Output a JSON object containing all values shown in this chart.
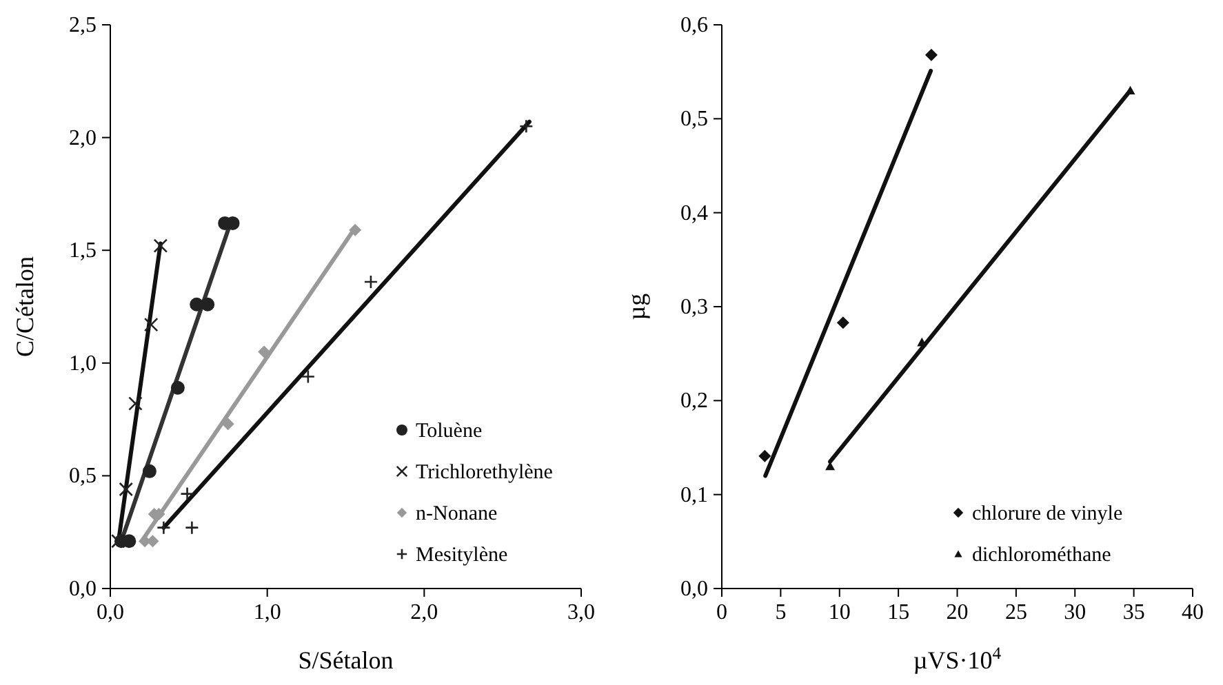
{
  "chart_data": [
    {
      "type": "scatter",
      "xlabel": "S/Sétalon",
      "ylabel": "C/Cétalon",
      "legend": "bottom right",
      "xlim": [
        0,
        3
      ],
      "xticks": [
        {
          "value": 0,
          "label": "0,0"
        },
        {
          "value": 1,
          "label": "1,0"
        },
        {
          "value": 2,
          "label": "2,0"
        },
        {
          "value": 3,
          "label": "3,0"
        }
      ],
      "ylim": [
        0,
        2.5
      ],
      "yticks": [
        {
          "value": 0,
          "label": "0,0"
        },
        {
          "value": 0.5,
          "label": "0,5"
        },
        {
          "value": 1,
          "label": "1,0"
        },
        {
          "value": 1.5,
          "label": "1,5"
        },
        {
          "value": 2,
          "label": "2,0"
        },
        {
          "value": 2.5,
          "label": "2,5"
        }
      ],
      "series": [
        {
          "type": "line",
          "color": "#333333",
          "x": [
            0.07,
            0.77
          ],
          "values": [
            0.21,
            1.63
          ]
        },
        {
          "type": "line",
          "color": "#111111",
          "x": [
            0.05,
            0.32
          ],
          "values": [
            0.2,
            1.53
          ]
        },
        {
          "type": "line",
          "color": "#999999",
          "x": [
            0.2,
            1.56
          ],
          "values": [
            0.21,
            1.6
          ]
        },
        {
          "type": "line",
          "color": "#111111",
          "x": [
            0.34,
            2.67
          ],
          "values": [
            0.27,
            2.07
          ]
        },
        {
          "name": "Toluène",
          "color": "#222222",
          "marker": "circle",
          "x": [
            0.07,
            0.12,
            0.25,
            0.43,
            0.55,
            0.62,
            0.73,
            0.78
          ],
          "values": [
            0.21,
            0.21,
            0.52,
            0.89,
            1.26,
            1.26,
            1.62,
            1.62
          ]
        },
        {
          "name": "Trichlorethylène",
          "color": "#222222",
          "marker": "cross",
          "x": [
            0.05,
            0.1,
            0.16,
            0.26,
            0.32
          ],
          "values": [
            0.21,
            0.44,
            0.82,
            1.17,
            1.52
          ]
        },
        {
          "name": "n-Nonane",
          "color": "#999999",
          "marker": "diamond",
          "x": [
            0.22,
            0.27,
            0.28,
            0.31,
            0.75,
            0.98,
            1.56
          ],
          "values": [
            0.21,
            0.21,
            0.33,
            0.33,
            0.73,
            1.05,
            1.59
          ]
        },
        {
          "name": "Mesitylène",
          "color": "#222222",
          "marker": "plus",
          "x": [
            0.34,
            0.49,
            0.52,
            1.26,
            1.66,
            2.65
          ],
          "values": [
            0.27,
            0.42,
            0.27,
            0.94,
            1.36,
            2.05
          ]
        }
      ]
    },
    {
      "type": "scatter",
      "xlabel": "µVS·10$^{4}$",
      "ylabel": "µg",
      "legend": "bottom right",
      "xlim": [
        0,
        40
      ],
      "xticks": [
        0,
        5,
        10,
        15,
        20,
        25,
        30,
        35,
        40
      ],
      "ylim": [
        0,
        0.6
      ],
      "yticks": [
        {
          "value": 0,
          "label": "0,0"
        },
        {
          "value": 0.1,
          "label": "0,1"
        },
        {
          "value": 0.2,
          "label": "0,2"
        },
        {
          "value": 0.3,
          "label": "0,3"
        },
        {
          "value": 0.4,
          "label": "0,4"
        },
        {
          "value": 0.5,
          "label": "0,5"
        },
        {
          "value": 0.6,
          "label": "0,6"
        }
      ],
      "series": [
        {
          "type": "line",
          "color": "#111111",
          "x": [
            3.7,
            17.75
          ],
          "values": [
            0.12,
            0.551
          ]
        },
        {
          "type": "line",
          "color": "#111111",
          "x": [
            9.2,
            34.7
          ],
          "values": [
            0.135,
            0.53
          ]
        },
        {
          "name": "chlorure de vinyle",
          "color": "#111111",
          "marker": "diamond",
          "x": [
            3.65,
            10.3,
            17.8
          ],
          "values": [
            0.141,
            0.283,
            0.568
          ]
        },
        {
          "name": "dichlorométhane",
          "color": "#111111",
          "marker": "triangle",
          "x": [
            9.2,
            17.0,
            34.7
          ],
          "values": [
            0.13,
            0.262,
            0.53
          ]
        }
      ]
    }
  ]
}
